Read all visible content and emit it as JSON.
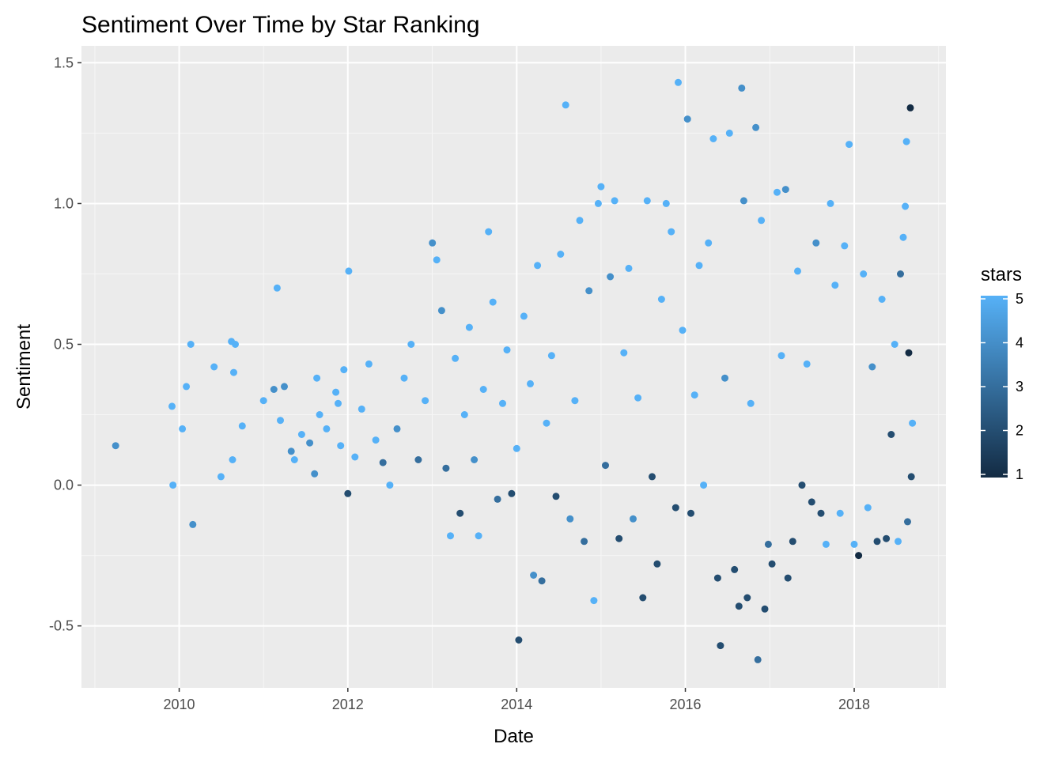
{
  "chart_data": {
    "type": "scatter",
    "title": "Sentiment Over Time by Star Ranking",
    "xlabel": "Date",
    "ylabel": "Sentiment",
    "x_axis_type": "date",
    "xlim": [
      "2008-11-04",
      "2019-02-02"
    ],
    "ylim": [
      -0.72,
      1.56
    ],
    "x_ticks": [
      "2010",
      "2012",
      "2014",
      "2016",
      "2018"
    ],
    "x_tick_dates": [
      "2010-01-01",
      "2012-01-01",
      "2014-01-01",
      "2016-01-01",
      "2018-01-01"
    ],
    "y_ticks": [
      -0.5,
      0.0,
      0.5,
      1.0,
      1.5
    ],
    "y_tick_labels": [
      "-0.5",
      "0.0",
      "0.5",
      "1.0",
      "1.5"
    ],
    "grid": true,
    "background": "#ebebeb",
    "color_scale": {
      "variable": "stars",
      "min": 1,
      "max": 5,
      "low_color": "#132b43",
      "high_color": "#56b1f7",
      "breaks": [
        1,
        2,
        3,
        4,
        5
      ],
      "break_labels": [
        "1",
        "2",
        "3",
        "4",
        "5"
      ]
    },
    "legend": {
      "title": "stars",
      "position": "right"
    },
    "points": [
      {
        "date": "2009-04-01",
        "y": 0.14,
        "stars": 4
      },
      {
        "date": "2009-12-01",
        "y": 0.28,
        "stars": 5
      },
      {
        "date": "2009-12-05",
        "y": 0.0,
        "stars": 5
      },
      {
        "date": "2010-01-15",
        "y": 0.2,
        "stars": 5
      },
      {
        "date": "2010-02-01",
        "y": 0.35,
        "stars": 5
      },
      {
        "date": "2010-02-20",
        "y": 0.5,
        "stars": 5
      },
      {
        "date": "2010-03-01",
        "y": -0.14,
        "stars": 4
      },
      {
        "date": "2010-06-01",
        "y": 0.42,
        "stars": 5
      },
      {
        "date": "2010-07-01",
        "y": 0.03,
        "stars": 5
      },
      {
        "date": "2010-08-15",
        "y": 0.51,
        "stars": 5
      },
      {
        "date": "2010-09-01",
        "y": 0.5,
        "stars": 5
      },
      {
        "date": "2010-08-20",
        "y": 0.09,
        "stars": 5
      },
      {
        "date": "2010-08-25",
        "y": 0.4,
        "stars": 5
      },
      {
        "date": "2010-10-01",
        "y": 0.21,
        "stars": 5
      },
      {
        "date": "2011-01-01",
        "y": 0.3,
        "stars": 5
      },
      {
        "date": "2011-02-15",
        "y": 0.34,
        "stars": 4
      },
      {
        "date": "2011-03-01",
        "y": 0.7,
        "stars": 5
      },
      {
        "date": "2011-04-01",
        "y": 0.35,
        "stars": 4
      },
      {
        "date": "2011-03-15",
        "y": 0.23,
        "stars": 5
      },
      {
        "date": "2011-05-01",
        "y": 0.12,
        "stars": 4
      },
      {
        "date": "2011-05-15",
        "y": 0.09,
        "stars": 5
      },
      {
        "date": "2011-06-15",
        "y": 0.18,
        "stars": 5
      },
      {
        "date": "2011-07-20",
        "y": 0.15,
        "stars": 4
      },
      {
        "date": "2011-08-10",
        "y": 0.04,
        "stars": 4
      },
      {
        "date": "2011-08-20",
        "y": 0.38,
        "stars": 5
      },
      {
        "date": "2011-09-01",
        "y": 0.25,
        "stars": 5
      },
      {
        "date": "2011-10-01",
        "y": 0.2,
        "stars": 5
      },
      {
        "date": "2011-11-10",
        "y": 0.33,
        "stars": 5
      },
      {
        "date": "2011-11-20",
        "y": 0.29,
        "stars": 5
      },
      {
        "date": "2011-12-01",
        "y": 0.14,
        "stars": 5
      },
      {
        "date": "2011-12-15",
        "y": 0.41,
        "stars": 5
      },
      {
        "date": "2012-01-01",
        "y": -0.03,
        "stars": 2
      },
      {
        "date": "2012-01-05",
        "y": 0.76,
        "stars": 5
      },
      {
        "date": "2012-02-01",
        "y": 0.1,
        "stars": 5
      },
      {
        "date": "2012-03-01",
        "y": 0.27,
        "stars": 5
      },
      {
        "date": "2012-04-01",
        "y": 0.43,
        "stars": 5
      },
      {
        "date": "2012-05-01",
        "y": 0.16,
        "stars": 5
      },
      {
        "date": "2012-06-01",
        "y": 0.08,
        "stars": 3
      },
      {
        "date": "2012-07-01",
        "y": 0.0,
        "stars": 5
      },
      {
        "date": "2012-08-01",
        "y": 0.2,
        "stars": 4
      },
      {
        "date": "2012-09-01",
        "y": 0.38,
        "stars": 5
      },
      {
        "date": "2012-10-01",
        "y": 0.5,
        "stars": 5
      },
      {
        "date": "2012-11-01",
        "y": 0.09,
        "stars": 3
      },
      {
        "date": "2012-12-01",
        "y": 0.3,
        "stars": 5
      },
      {
        "date": "2013-01-01",
        "y": 0.86,
        "stars": 4
      },
      {
        "date": "2013-01-20",
        "y": 0.8,
        "stars": 5
      },
      {
        "date": "2013-02-10",
        "y": 0.62,
        "stars": 4
      },
      {
        "date": "2013-03-01",
        "y": 0.06,
        "stars": 3
      },
      {
        "date": "2013-03-20",
        "y": -0.18,
        "stars": 5
      },
      {
        "date": "2013-04-10",
        "y": 0.45,
        "stars": 5
      },
      {
        "date": "2013-05-01",
        "y": -0.1,
        "stars": 2
      },
      {
        "date": "2013-05-20",
        "y": 0.25,
        "stars": 5
      },
      {
        "date": "2013-06-10",
        "y": 0.56,
        "stars": 5
      },
      {
        "date": "2013-07-01",
        "y": 0.09,
        "stars": 4
      },
      {
        "date": "2013-07-20",
        "y": -0.18,
        "stars": 5
      },
      {
        "date": "2013-08-10",
        "y": 0.34,
        "stars": 5
      },
      {
        "date": "2013-09-01",
        "y": 0.9,
        "stars": 5
      },
      {
        "date": "2013-09-20",
        "y": 0.65,
        "stars": 5
      },
      {
        "date": "2013-10-10",
        "y": -0.05,
        "stars": 3
      },
      {
        "date": "2013-11-01",
        "y": 0.29,
        "stars": 5
      },
      {
        "date": "2013-11-20",
        "y": 0.48,
        "stars": 5
      },
      {
        "date": "2013-12-10",
        "y": -0.03,
        "stars": 2
      },
      {
        "date": "2014-01-01",
        "y": 0.13,
        "stars": 5
      },
      {
        "date": "2014-01-10",
        "y": -0.55,
        "stars": 2
      },
      {
        "date": "2014-02-01",
        "y": 0.6,
        "stars": 5
      },
      {
        "date": "2014-03-01",
        "y": 0.36,
        "stars": 5
      },
      {
        "date": "2014-03-15",
        "y": -0.32,
        "stars": 4
      },
      {
        "date": "2014-04-01",
        "y": 0.78,
        "stars": 5
      },
      {
        "date": "2014-04-20",
        "y": -0.34,
        "stars": 3
      },
      {
        "date": "2014-05-10",
        "y": 0.22,
        "stars": 5
      },
      {
        "date": "2014-06-01",
        "y": 0.46,
        "stars": 5
      },
      {
        "date": "2014-06-20",
        "y": -0.04,
        "stars": 2
      },
      {
        "date": "2014-07-10",
        "y": 0.82,
        "stars": 5
      },
      {
        "date": "2014-08-01",
        "y": 1.35,
        "stars": 5
      },
      {
        "date": "2014-08-20",
        "y": -0.12,
        "stars": 4
      },
      {
        "date": "2014-09-10",
        "y": 0.3,
        "stars": 5
      },
      {
        "date": "2014-10-01",
        "y": 0.94,
        "stars": 5
      },
      {
        "date": "2014-10-20",
        "y": -0.2,
        "stars": 3
      },
      {
        "date": "2014-11-10",
        "y": 0.69,
        "stars": 4
      },
      {
        "date": "2014-12-01",
        "y": -0.41,
        "stars": 5
      },
      {
        "date": "2014-12-20",
        "y": 1.0,
        "stars": 5
      },
      {
        "date": "2015-01-01",
        "y": 1.06,
        "stars": 5
      },
      {
        "date": "2015-01-20",
        "y": 0.07,
        "stars": 3
      },
      {
        "date": "2015-02-10",
        "y": 0.74,
        "stars": 4
      },
      {
        "date": "2015-03-01",
        "y": 1.01,
        "stars": 5
      },
      {
        "date": "2015-03-20",
        "y": -0.19,
        "stars": 2
      },
      {
        "date": "2015-04-10",
        "y": 0.47,
        "stars": 5
      },
      {
        "date": "2015-05-01",
        "y": 0.77,
        "stars": 5
      },
      {
        "date": "2015-05-20",
        "y": -0.12,
        "stars": 4
      },
      {
        "date": "2015-06-10",
        "y": 0.31,
        "stars": 5
      },
      {
        "date": "2015-07-01",
        "y": -0.4,
        "stars": 2
      },
      {
        "date": "2015-07-20",
        "y": 1.01,
        "stars": 5
      },
      {
        "date": "2015-08-10",
        "y": 0.03,
        "stars": 2
      },
      {
        "date": "2015-09-01",
        "y": -0.28,
        "stars": 2
      },
      {
        "date": "2015-09-20",
        "y": 0.66,
        "stars": 5
      },
      {
        "date": "2015-10-10",
        "y": 1.0,
        "stars": 5
      },
      {
        "date": "2015-11-01",
        "y": 0.9,
        "stars": 5
      },
      {
        "date": "2015-11-20",
        "y": -0.08,
        "stars": 2
      },
      {
        "date": "2015-12-01",
        "y": 1.43,
        "stars": 5
      },
      {
        "date": "2015-12-20",
        "y": 0.55,
        "stars": 5
      },
      {
        "date": "2016-01-10",
        "y": 1.3,
        "stars": 4
      },
      {
        "date": "2016-01-25",
        "y": -0.1,
        "stars": 2
      },
      {
        "date": "2016-02-10",
        "y": 0.32,
        "stars": 5
      },
      {
        "date": "2016-03-01",
        "y": 0.78,
        "stars": 5
      },
      {
        "date": "2016-03-20",
        "y": 0.0,
        "stars": 5
      },
      {
        "date": "2016-04-10",
        "y": 0.86,
        "stars": 5
      },
      {
        "date": "2016-05-01",
        "y": 1.23,
        "stars": 5
      },
      {
        "date": "2016-05-20",
        "y": -0.33,
        "stars": 2
      },
      {
        "date": "2016-06-01",
        "y": -0.57,
        "stars": 2
      },
      {
        "date": "2016-06-20",
        "y": 0.38,
        "stars": 4
      },
      {
        "date": "2016-07-10",
        "y": 1.25,
        "stars": 5
      },
      {
        "date": "2016-08-01",
        "y": -0.3,
        "stars": 2
      },
      {
        "date": "2016-08-20",
        "y": -0.43,
        "stars": 2
      },
      {
        "date": "2016-09-01",
        "y": 1.41,
        "stars": 4
      },
      {
        "date": "2016-09-10",
        "y": 1.01,
        "stars": 4
      },
      {
        "date": "2016-09-25",
        "y": -0.4,
        "stars": 2
      },
      {
        "date": "2016-10-10",
        "y": 0.29,
        "stars": 5
      },
      {
        "date": "2016-11-01",
        "y": 1.27,
        "stars": 4
      },
      {
        "date": "2016-11-10",
        "y": -0.62,
        "stars": 3
      },
      {
        "date": "2016-11-25",
        "y": 0.94,
        "stars": 5
      },
      {
        "date": "2016-12-10",
        "y": -0.44,
        "stars": 2
      },
      {
        "date": "2016-12-25",
        "y": -0.21,
        "stars": 3
      },
      {
        "date": "2017-01-10",
        "y": -0.28,
        "stars": 2
      },
      {
        "date": "2017-02-01",
        "y": 1.04,
        "stars": 5
      },
      {
        "date": "2017-02-20",
        "y": 0.46,
        "stars": 5
      },
      {
        "date": "2017-03-10",
        "y": 1.05,
        "stars": 4
      },
      {
        "date": "2017-03-20",
        "y": -0.33,
        "stars": 2
      },
      {
        "date": "2017-04-10",
        "y": -0.2,
        "stars": 2
      },
      {
        "date": "2017-05-01",
        "y": 0.76,
        "stars": 5
      },
      {
        "date": "2017-05-20",
        "y": 0.0,
        "stars": 2
      },
      {
        "date": "2017-06-10",
        "y": 0.43,
        "stars": 5
      },
      {
        "date": "2017-07-01",
        "y": -0.06,
        "stars": 2
      },
      {
        "date": "2017-07-20",
        "y": 0.86,
        "stars": 4
      },
      {
        "date": "2017-08-10",
        "y": -0.1,
        "stars": 2
      },
      {
        "date": "2017-09-01",
        "y": -0.21,
        "stars": 5
      },
      {
        "date": "2017-09-20",
        "y": 1.0,
        "stars": 5
      },
      {
        "date": "2017-10-10",
        "y": 0.71,
        "stars": 5
      },
      {
        "date": "2017-11-01",
        "y": -0.1,
        "stars": 5
      },
      {
        "date": "2017-11-20",
        "y": 0.85,
        "stars": 5
      },
      {
        "date": "2017-12-10",
        "y": 1.21,
        "stars": 5
      },
      {
        "date": "2018-01-01",
        "y": -0.21,
        "stars": 5
      },
      {
        "date": "2018-01-20",
        "y": -0.25,
        "stars": 1
      },
      {
        "date": "2018-02-10",
        "y": 0.75,
        "stars": 5
      },
      {
        "date": "2018-03-01",
        "y": -0.08,
        "stars": 5
      },
      {
        "date": "2018-03-20",
        "y": 0.42,
        "stars": 4
      },
      {
        "date": "2018-04-10",
        "y": -0.2,
        "stars": 2
      },
      {
        "date": "2018-05-01",
        "y": 0.66,
        "stars": 5
      },
      {
        "date": "2018-05-20",
        "y": -0.19,
        "stars": 2
      },
      {
        "date": "2018-06-10",
        "y": 0.18,
        "stars": 2
      },
      {
        "date": "2018-06-25",
        "y": 0.5,
        "stars": 5
      },
      {
        "date": "2018-07-10",
        "y": -0.2,
        "stars": 5
      },
      {
        "date": "2018-07-20",
        "y": 0.75,
        "stars": 3
      },
      {
        "date": "2018-08-01",
        "y": 0.88,
        "stars": 5
      },
      {
        "date": "2018-08-10",
        "y": 0.99,
        "stars": 5
      },
      {
        "date": "2018-08-15",
        "y": 1.22,
        "stars": 5
      },
      {
        "date": "2018-08-20",
        "y": -0.13,
        "stars": 3
      },
      {
        "date": "2018-08-25",
        "y": 0.47,
        "stars": 1
      },
      {
        "date": "2018-09-01",
        "y": 1.34,
        "stars": 1
      },
      {
        "date": "2018-09-05",
        "y": 0.03,
        "stars": 2
      },
      {
        "date": "2018-09-10",
        "y": 0.22,
        "stars": 5
      }
    ]
  }
}
